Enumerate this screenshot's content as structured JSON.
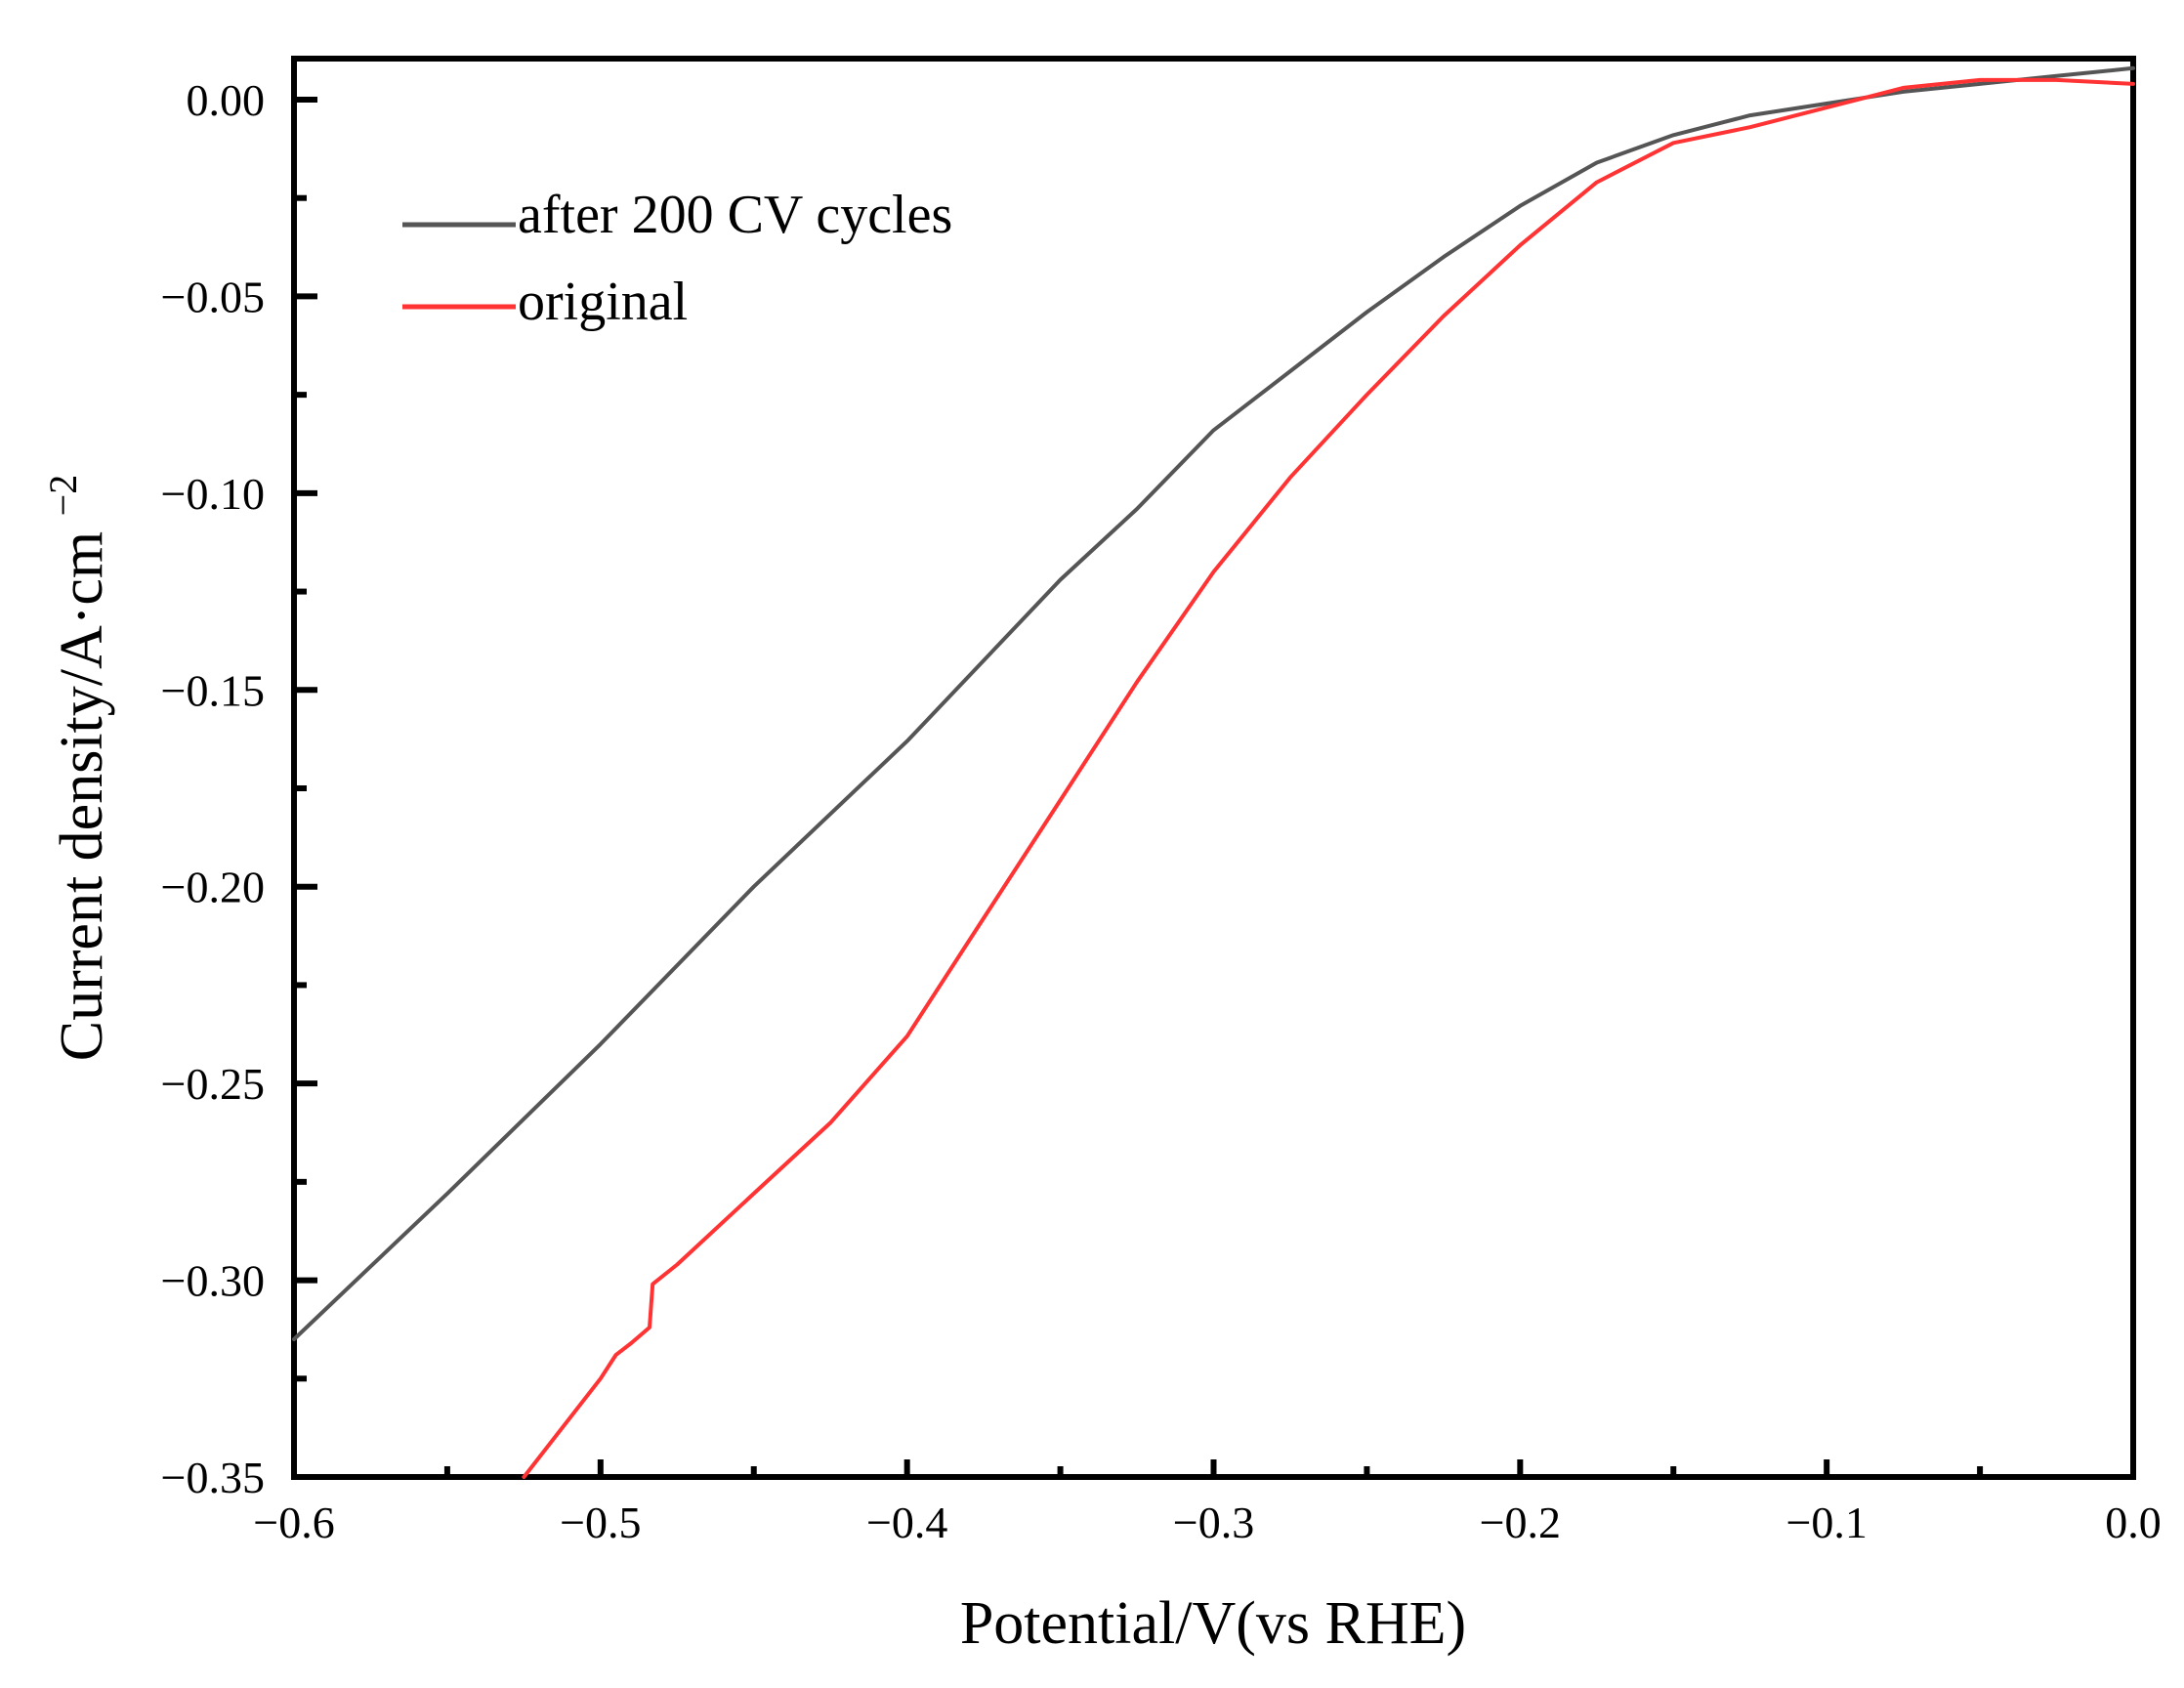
{
  "chart_data": {
    "type": "line",
    "title": "",
    "xlabel": "Potential/V(vs RHE)",
    "ylabel_main": "Current density/A·cm",
    "ylabel_sup": "−2",
    "xlim": [
      -0.6,
      0.0
    ],
    "ylim": [
      -0.35,
      0.01
    ],
    "xticks": [
      -0.6,
      -0.5,
      -0.4,
      -0.3,
      -0.2,
      -0.1,
      0.0
    ],
    "xtick_labels": [
      "−0.6",
      "−0.5",
      "−0.4",
      "−0.3",
      "−0.2",
      "−0.1",
      "0.0"
    ],
    "yticks": [
      0.0,
      -0.05,
      -0.1,
      -0.15,
      -0.2,
      -0.25,
      -0.3,
      -0.35
    ],
    "ytick_labels": [
      "0.00",
      "−0.05",
      "−0.10",
      "−0.15",
      "−0.20",
      "−0.25",
      "−0.30",
      "−0.35"
    ],
    "grid": false,
    "legend_position": "top-left",
    "series": [
      {
        "name": "after 200 CV cycles",
        "color": "#555555",
        "x": [
          -0.6,
          -0.55,
          -0.5,
          -0.45,
          -0.4,
          -0.35,
          -0.325,
          -0.3,
          -0.275,
          -0.25,
          -0.225,
          -0.2,
          -0.175,
          -0.15,
          -0.125,
          -0.1,
          -0.075,
          -0.05,
          -0.025,
          0.0
        ],
        "y": [
          -0.315,
          -0.278,
          -0.24,
          -0.2,
          -0.163,
          -0.122,
          -0.104,
          -0.084,
          -0.069,
          -0.054,
          -0.04,
          -0.027,
          -0.016,
          -0.009,
          -0.004,
          -0.001,
          0.002,
          0.004,
          0.006,
          0.008
        ]
      },
      {
        "name": "original",
        "color": "#ff3333",
        "x": [
          -0.525,
          -0.5,
          -0.495,
          -0.49,
          -0.484,
          -0.483,
          -0.475,
          -0.45,
          -0.425,
          -0.4,
          -0.375,
          -0.35,
          -0.325,
          -0.3,
          -0.275,
          -0.25,
          -0.225,
          -0.2,
          -0.175,
          -0.15,
          -0.125,
          -0.1,
          -0.075,
          -0.05,
          -0.025,
          0.0
        ],
        "y": [
          -0.35,
          -0.325,
          -0.319,
          -0.316,
          -0.312,
          -0.301,
          -0.296,
          -0.278,
          -0.26,
          -0.238,
          -0.208,
          -0.178,
          -0.148,
          -0.12,
          -0.096,
          -0.075,
          -0.055,
          -0.037,
          -0.021,
          -0.011,
          -0.007,
          -0.002,
          0.003,
          0.005,
          0.005,
          0.004
        ]
      }
    ]
  }
}
